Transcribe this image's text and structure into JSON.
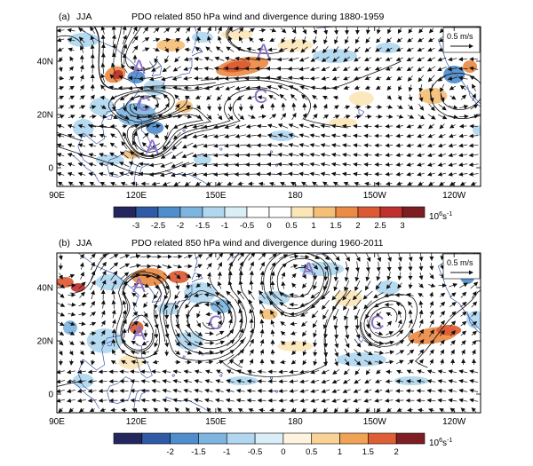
{
  "panels": [
    {
      "label": "(a)",
      "season": "JJA",
      "title": "PDO related 850 hPa wind and divergence during 1880-1959",
      "ref_vector_label": "0.5 m/s",
      "x_ticks": [
        "90E",
        "120E",
        "150E",
        "180",
        "150W",
        "120W"
      ],
      "y_ticks": [
        "40N",
        "20N",
        "0"
      ],
      "colorbar": {
        "labels": [
          "-3",
          "-2.5",
          "-2",
          "-1.5",
          "-1",
          "-0.5",
          "0",
          "0.5",
          "1",
          "1.5",
          "2",
          "2.5",
          "3"
        ],
        "colors": [
          "#23275e",
          "#2e5aa6",
          "#4f8dcc",
          "#7eb5e0",
          "#b0d7ef",
          "#daeef8",
          "#ffffff",
          "#ffffff",
          "#fbe6b8",
          "#f5bf76",
          "#ec8b45",
          "#dc5a33",
          "#c0302e",
          "#7e1e22"
        ],
        "unit_base": "10",
        "unit_exp": "6",
        "unit_suffix": "s",
        "unit_suffix_exp": "-1"
      },
      "annotations": [
        {
          "text": "A",
          "lon": 121,
          "lat": 38
        },
        {
          "text": "A",
          "lon": 168,
          "lat": 44
        },
        {
          "text": "C",
          "lon": 123,
          "lat": 24
        },
        {
          "text": "C",
          "lon": 167,
          "lat": 27
        },
        {
          "text": "A",
          "lon": 126,
          "lat": 8
        }
      ]
    },
    {
      "label": "(b)",
      "season": "JJA",
      "title": "PDO related 850 hPa wind and divergence during 1960-2011",
      "ref_vector_label": "0.5 m/s",
      "x_ticks": [
        "90E",
        "120E",
        "150E",
        "180",
        "150W",
        "120W"
      ],
      "y_ticks": [
        "40N",
        "20N",
        "0"
      ],
      "colorbar": {
        "labels": [
          "-2",
          "-1.5",
          "-1",
          "-0.5",
          "0",
          "0.5",
          "1",
          "1.5",
          "2"
        ],
        "colors": [
          "#23275e",
          "#2e5aa6",
          "#4f8dcc",
          "#7eb5e0",
          "#b0d7ef",
          "#daeef8",
          "#fff4e0",
          "#f9d296",
          "#f0a255",
          "#de5f35",
          "#7e1e22"
        ],
        "unit_base": "10",
        "unit_exp": "6",
        "unit_suffix": "s",
        "unit_suffix_exp": "-1"
      },
      "annotations": [
        {
          "text": "A",
          "lon": 121,
          "lat": 41
        },
        {
          "text": "A",
          "lon": 185,
          "lat": 47
        },
        {
          "text": "C",
          "lon": 150,
          "lat": 27
        },
        {
          "text": "C",
          "lon": 211,
          "lat": 27
        },
        {
          "text": "A",
          "lon": 121,
          "lat": 23
        }
      ]
    }
  ]
}
